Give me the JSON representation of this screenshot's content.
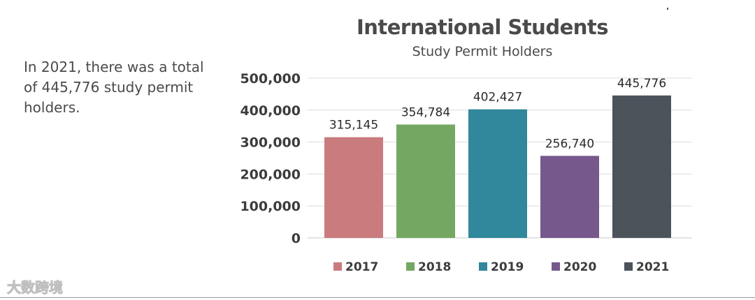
{
  "side_note": "In 2021, there was a total of 445,776 study permit holders.",
  "watermark": "大数跨境",
  "chart_data": {
    "type": "bar",
    "title": "International Students",
    "subtitle": "Study Permit Holders",
    "categories": [
      "2017",
      "2018",
      "2019",
      "2020",
      "2021"
    ],
    "values": [
      315145,
      354784,
      402427,
      256740,
      445776
    ],
    "value_labels": [
      "315,145",
      "354,784",
      "402,427",
      "256,740",
      "445,776"
    ],
    "colors": [
      "#c97b7d",
      "#74a862",
      "#31879b",
      "#76588d",
      "#4b535b"
    ],
    "yticks": [
      0,
      100000,
      200000,
      300000,
      400000,
      500000
    ],
    "ytick_labels": [
      "0",
      "100,000",
      "200,000",
      "300,000",
      "400,000",
      "500,000"
    ],
    "ylim": [
      0,
      500000
    ],
    "grid": true,
    "legend_position": "bottom",
    "xlabel": "",
    "ylabel": ""
  }
}
